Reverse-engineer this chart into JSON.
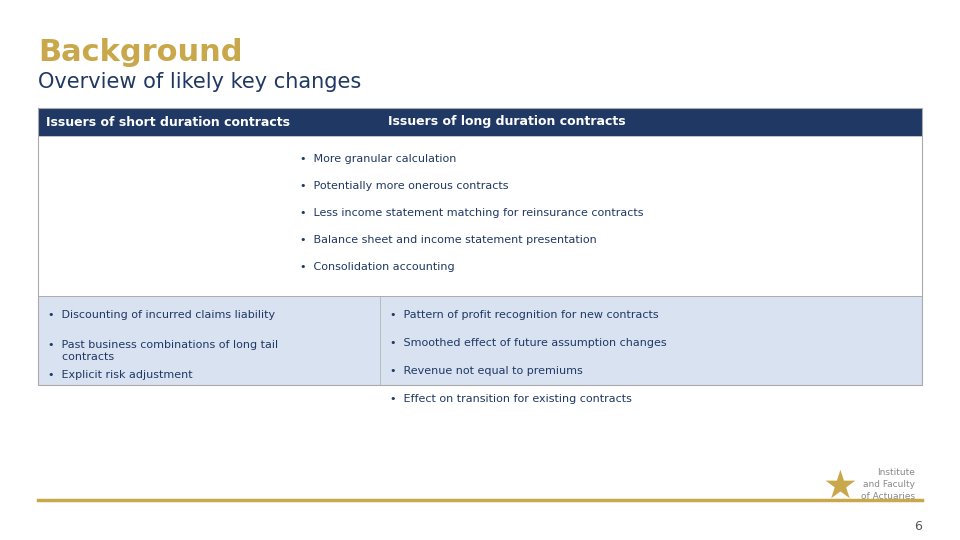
{
  "title": "Background",
  "subtitle": "Overview of likely key changes",
  "title_color": "#C9A84C",
  "subtitle_color": "#1F3864",
  "bg_color": "#FFFFFF",
  "header_bg": "#1F3864",
  "header_text_color": "#FFFFFF",
  "col1_header": "Issuers of short duration contracts",
  "col2_header": "Issuers of long duration contracts",
  "row1_bullets": [
    "More granular calculation",
    "Potentially more onerous contracts",
    "Less income statement matching for reinsurance contracts",
    "Balance sheet and income statement presentation",
    "Consolidation accounting"
  ],
  "row2_col1_bullets": [
    "Discounting of incurred claims liability",
    "Past business combinations of long tail\n    contracts",
    "Explicit risk adjustment"
  ],
  "row2_col2_bullets": [
    "Pattern of profit recognition for new contracts",
    "Smoothed effect of future assumption changes",
    "Revenue not equal to premiums",
    "Effect on transition for existing contracts"
  ],
  "row1_bg": "#FFFFFF",
  "row2_bg": "#D9E2F0",
  "table_border": "#AAAAAA",
  "header_border": "#1F3864",
  "footer_line_color": "#C9A84C",
  "page_number": "6",
  "body_text_color": "#1F3864",
  "bullet_color": "#1F3864",
  "font_size_title": 22,
  "font_size_subtitle": 15,
  "font_size_header": 9,
  "font_size_body": 8
}
